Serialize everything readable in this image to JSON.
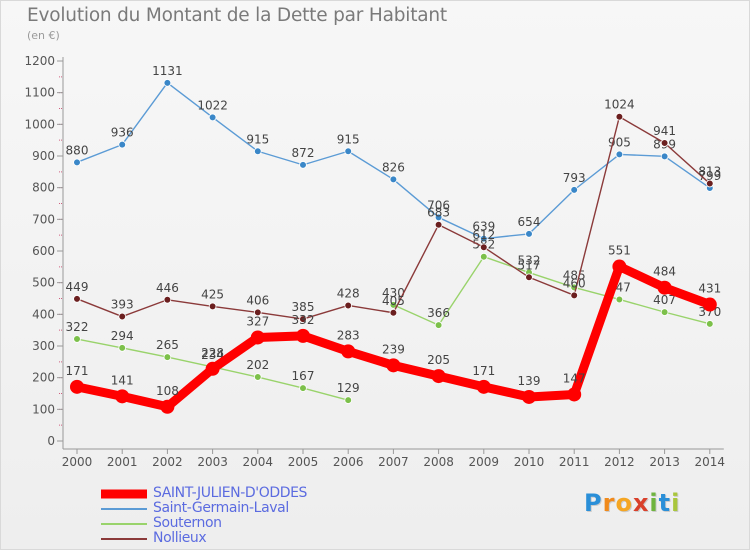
{
  "title": "Evolution du Montant de la Dette par Habitant",
  "unit_label": "(en €)",
  "logo": {
    "text": "Proxiti",
    "letters": [
      "P",
      "r",
      "o",
      "x",
      "i",
      "t",
      "i"
    ],
    "letter_colors": [
      "#2a8fd8",
      "#f08a1c",
      "#f5a623",
      "#d9402b",
      "#6fb43f",
      "#2a8fd8",
      "#a9c63c"
    ]
  },
  "chart_data": {
    "type": "line",
    "title": "Evolution du Montant de la Dette par Habitant",
    "ylabel": "(en €)",
    "x": [
      "2000",
      "2001",
      "2002",
      "2003",
      "2004",
      "2005",
      "2006",
      "2007",
      "2008",
      "2009",
      "2010",
      "2011",
      "2012",
      "2013",
      "2014"
    ],
    "ylim": [
      0,
      1200
    ],
    "yticks": [
      0,
      100,
      200,
      300,
      400,
      500,
      600,
      700,
      800,
      900,
      1000,
      1100,
      1200
    ],
    "grid": false,
    "legend_position": "bottom-left",
    "series": [
      {
        "name": "Saint-Germain-Laval",
        "color": "#5b9bd5",
        "marker_color": "#3a87c8",
        "values": [
          880,
          936,
          1131,
          1022,
          915,
          872,
          915,
          826,
          706,
          639,
          654,
          793,
          905,
          899,
          799
        ],
        "labels": [
          "880",
          "936",
          "1131",
          "1022",
          "915",
          "872",
          "915",
          "826",
          "706",
          "639",
          "654",
          "793",
          "905",
          "899",
          "799"
        ]
      },
      {
        "name": "Souternon",
        "color": "#99d36b",
        "marker_color": "#7cc04a",
        "values": [
          322,
          294,
          265,
          234,
          202,
          167,
          129,
          430,
          366,
          582,
          532,
          485,
          447,
          407,
          370
        ],
        "labels": [
          "322",
          "294",
          "265",
          "234",
          "202",
          "167",
          "129",
          "430",
          "366",
          "582",
          "532",
          "485",
          "447",
          "407",
          "370"
        ],
        "breaks": [
          6
        ]
      },
      {
        "name": "Nollieux",
        "color": "#8b3a3a",
        "marker_color": "#6b1f1f",
        "values": [
          449,
          393,
          446,
          425,
          406,
          385,
          428,
          405,
          683,
          612,
          517,
          460,
          1024,
          941,
          813
        ],
        "labels": [
          "449",
          "393",
          "446",
          "425",
          "406",
          "385",
          "428",
          "405",
          "683",
          "612",
          "517",
          "460",
          "1024",
          "941",
          "813"
        ]
      },
      {
        "name": "SAINT-JULIEN-D'ODDES",
        "color": "#ff0000",
        "marker_color": "#ff0000",
        "values": [
          171,
          141,
          108,
          228,
          327,
          332,
          283,
          239,
          205,
          171,
          139,
          147,
          551,
          484,
          431
        ],
        "labels": [
          "171",
          "141",
          "108",
          "228",
          "327",
          "332",
          "283",
          "239",
          "205",
          "171",
          "139",
          "147",
          "551",
          "484",
          "431"
        ],
        "thick": true
      }
    ],
    "legend": [
      {
        "name": "SAINT-JULIEN-D'ODDES",
        "color": "#ff0000",
        "text_color": "#5b6be0",
        "thick": true
      },
      {
        "name": "Saint-Germain-Laval",
        "color": "#5b9bd5",
        "text_color": "#5b6be0"
      },
      {
        "name": "Souternon",
        "color": "#99d36b",
        "text_color": "#5b6be0"
      },
      {
        "name": "Nollieux",
        "color": "#8b3a3a",
        "text_color": "#5b6be0"
      }
    ]
  }
}
